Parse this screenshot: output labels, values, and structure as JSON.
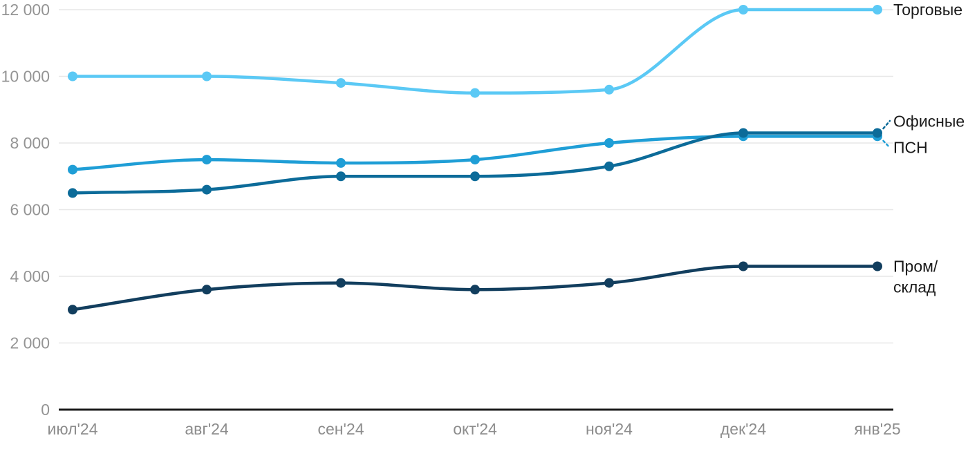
{
  "chart_data": {
    "type": "line",
    "title": "",
    "xlabel": "",
    "ylabel": "",
    "ylim": [
      0,
      12000
    ],
    "grid": "horizontal-only",
    "legend_position": "right-inline-labels",
    "x_labels": [
      "июл'24",
      "авг'24",
      "сен'24",
      "окт'24",
      "ноя'24",
      "дек'24",
      "янв'25"
    ],
    "y_ticks": [
      {
        "value": 0,
        "label": "0"
      },
      {
        "value": 2000,
        "label": "2 000"
      },
      {
        "value": 4000,
        "label": "4 000"
      },
      {
        "value": 6000,
        "label": "6 000"
      },
      {
        "value": 8000,
        "label": "8 000"
      },
      {
        "value": 10000,
        "label": "10 000"
      },
      {
        "value": 12000,
        "label": "12 000"
      }
    ],
    "series": [
      {
        "key": "torgovye",
        "name": "Торговые",
        "label_lines": [
          "Торговые"
        ],
        "color": "#5BC9F5",
        "values": [
          10000,
          10000,
          9800,
          9500,
          9600,
          12000,
          12000
        ]
      },
      {
        "key": "psn",
        "name": "ПСН",
        "label_lines": [
          "ПСН"
        ],
        "color": "#1F9ED6",
        "values": [
          7200,
          7500,
          7400,
          7500,
          8000,
          8200,
          8200
        ]
      },
      {
        "key": "ofisnye",
        "name": "Офисные",
        "label_lines": [
          "Офисные"
        ],
        "color": "#0C6B99",
        "values": [
          6500,
          6600,
          7000,
          7000,
          7300,
          8300,
          8300
        ]
      },
      {
        "key": "prom-sklad",
        "name": "Пром/склад",
        "label_lines": [
          "Пром/",
          "склад"
        ],
        "color": "#123E5E",
        "values": [
          3000,
          3600,
          3800,
          3600,
          3800,
          4300,
          4300
        ]
      }
    ],
    "colors": {
      "background": "#FFFFFF",
      "grid": "#E7E7E7",
      "axis": "#1A1A1A",
      "tick_text": "#949494",
      "label_text": "#1A1A1A"
    }
  }
}
